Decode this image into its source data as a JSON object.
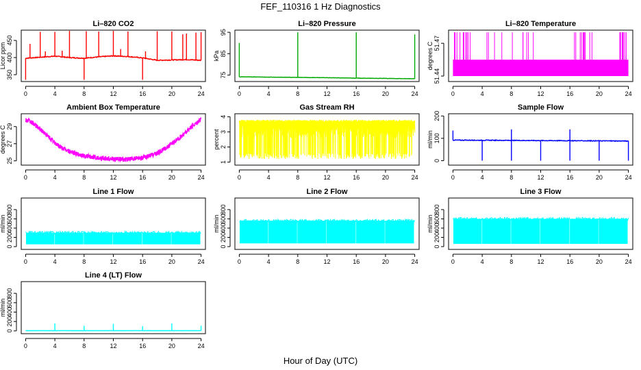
{
  "title": "FEF_110316  1 Hz Diagnostics",
  "xlabel": "Hour of Day (UTC)",
  "chart_data": [
    {
      "type": "line",
      "title": "Li–820 CO2",
      "ylabel": "Licor ppm",
      "color": "#ff0000",
      "xlim": [
        0,
        24
      ],
      "xticks": [
        0,
        4,
        8,
        12,
        16,
        20,
        24
      ],
      "ylim": [
        330,
        480
      ],
      "yticks": [
        350,
        400,
        450
      ],
      "baseline": [
        [
          0,
          398
        ],
        [
          2,
          401
        ],
        [
          4,
          404
        ],
        [
          6,
          400
        ],
        [
          8,
          398
        ],
        [
          10,
          402
        ],
        [
          12,
          405
        ],
        [
          14,
          403
        ],
        [
          16,
          399
        ],
        [
          18,
          392
        ],
        [
          20,
          393
        ],
        [
          22,
          394
        ],
        [
          24,
          392
        ]
      ],
      "spikes": [
        [
          0,
          335
        ],
        [
          0.6,
          440
        ],
        [
          2,
          475
        ],
        [
          2.7,
          418
        ],
        [
          4,
          475
        ],
        [
          5,
          420
        ],
        [
          6,
          478
        ],
        [
          8,
          335
        ],
        [
          8.3,
          477
        ],
        [
          10,
          476
        ],
        [
          12,
          478
        ],
        [
          13,
          425
        ],
        [
          14,
          476
        ],
        [
          16,
          335
        ],
        [
          16.4,
          418
        ],
        [
          18,
          477
        ],
        [
          20,
          476
        ],
        [
          21.5,
          468
        ],
        [
          22,
          470
        ],
        [
          23.3,
          473
        ],
        [
          24,
          474
        ]
      ]
    },
    {
      "type": "line",
      "title": "Li–820 Pressure",
      "ylabel": "kPa",
      "color": "#00aa00",
      "xlim": [
        0,
        24
      ],
      "xticks": [
        0,
        4,
        8,
        12,
        16,
        20,
        24
      ],
      "ylim": [
        72,
        96
      ],
      "yticks": [
        75,
        85,
        95
      ],
      "baseline": [
        [
          0,
          74.2
        ],
        [
          6,
          74.0
        ],
        [
          12,
          73.8
        ],
        [
          18,
          73.5
        ],
        [
          24,
          73.3
        ]
      ],
      "spikes": [
        [
          0,
          90
        ],
        [
          8,
          95
        ],
        [
          16,
          95
        ],
        [
          24,
          94
        ]
      ]
    },
    {
      "type": "line",
      "title": "Li–820 Temperature",
      "ylabel": "degrees C",
      "color": "#ff00ff",
      "xlim": [
        0,
        24
      ],
      "xticks": [
        0,
        4,
        8,
        12,
        16,
        20,
        24
      ],
      "yticks": [
        51.44,
        51.47
      ],
      "band": [
        51.44,
        51.455
      ],
      "spike_top": 51.48
    },
    {
      "type": "line",
      "title": "Ambient Box Temperature",
      "ylabel": "degrees C",
      "color": "#ff00ff",
      "xlim": [
        0,
        24
      ],
      "xticks": [
        0,
        4,
        8,
        12,
        16,
        20,
        24
      ],
      "ylim": [
        24.5,
        30.5
      ],
      "yticks": [
        25,
        27,
        29
      ],
      "x": [
        0,
        1,
        2,
        3,
        4,
        5,
        6,
        7,
        8,
        9,
        10,
        11,
        12,
        13,
        14,
        15,
        16,
        17,
        18,
        19,
        20,
        21,
        22,
        23,
        24
      ],
      "y": [
        29.8,
        29.4,
        28.7,
        27.9,
        27.1,
        26.5,
        26.1,
        25.8,
        25.6,
        25.45,
        25.35,
        25.3,
        25.2,
        25.2,
        25.2,
        25.25,
        25.35,
        25.6,
        25.9,
        26.4,
        27.0,
        27.6,
        28.4,
        29.2,
        29.9
      ]
    },
    {
      "type": "area",
      "title": "Gas Stream RH",
      "ylabel": "percent",
      "color": "#ffff00",
      "xlim": [
        0,
        24
      ],
      "xticks": [
        0,
        4,
        8,
        12,
        16,
        20,
        24
      ],
      "ylim": [
        0.8,
        4.2
      ],
      "yticks": [
        1.0,
        2.0,
        3.0,
        4.0
      ],
      "upper": 3.8,
      "lower": 1.2
    },
    {
      "type": "line",
      "title": "Sample Flow",
      "ylabel": "ml/min",
      "color": "#0000ff",
      "xlim": [
        0,
        24
      ],
      "xticks": [
        0,
        4,
        8,
        12,
        16,
        20,
        24
      ],
      "ylim": [
        -20,
        210
      ],
      "yticks": [
        0,
        100,
        200
      ],
      "baseline": [
        [
          0,
          92
        ],
        [
          24,
          88
        ]
      ],
      "spikes_up": [
        [
          0,
          135
        ],
        [
          8,
          140
        ],
        [
          16,
          140
        ]
      ],
      "spikes_down": [
        [
          4,
          0
        ],
        [
          8,
          0
        ],
        [
          12,
          0
        ],
        [
          16,
          0
        ],
        [
          20,
          0
        ],
        [
          24,
          0
        ]
      ]
    },
    {
      "type": "area",
      "title": "Line 1 Flow",
      "ylabel": "ml/min",
      "color": "#00ffff",
      "xlim": [
        0,
        24
      ],
      "xticks": [
        0,
        4,
        8,
        12,
        16,
        20,
        24
      ],
      "ylim": [
        -60,
        1050
      ],
      "yticks": [
        0,
        200,
        400,
        600,
        800
      ],
      "upper": 300,
      "lower": 50,
      "gaps": [
        4,
        8,
        12,
        16,
        20
      ]
    },
    {
      "type": "area",
      "title": "Line 2 Flow",
      "ylabel": "ml/min",
      "color": "#00ffff",
      "xlim": [
        0,
        24
      ],
      "xticks": [
        0,
        4,
        8,
        12,
        16,
        20,
        24
      ],
      "ylim": [
        -60,
        1050
      ],
      "yticks": [
        0,
        200,
        400,
        600,
        800
      ],
      "upper": 560,
      "lower": 70,
      "gaps": [
        4,
        8,
        12,
        16,
        20
      ]
    },
    {
      "type": "area",
      "title": "Line 3 Flow",
      "ylabel": "ml/min",
      "color": "#00ffff",
      "xlim": [
        0,
        24
      ],
      "xticks": [
        0,
        4,
        8,
        12,
        16,
        20,
        24
      ],
      "ylim": [
        -60,
        1050
      ],
      "yticks": [
        0,
        200,
        400,
        600,
        800
      ],
      "upper": 600,
      "lower": 60,
      "gaps": [
        4,
        8,
        12,
        16,
        20
      ]
    },
    {
      "type": "line",
      "title": "Line 4 (LT) Flow",
      "ylabel": "ml/min",
      "color": "#00ffff",
      "xlim": [
        0,
        24
      ],
      "xticks": [
        0,
        4,
        8,
        12,
        16,
        20,
        24
      ],
      "ylim": [
        -60,
        1050
      ],
      "yticks": [
        0,
        200,
        400,
        600,
        800
      ],
      "baseline": [
        [
          0,
          5
        ],
        [
          24,
          5
        ]
      ],
      "spikes": [
        [
          4,
          160
        ],
        [
          8,
          110
        ],
        [
          12,
          150
        ],
        [
          16,
          100
        ],
        [
          20,
          160
        ],
        [
          24,
          110
        ]
      ]
    }
  ]
}
